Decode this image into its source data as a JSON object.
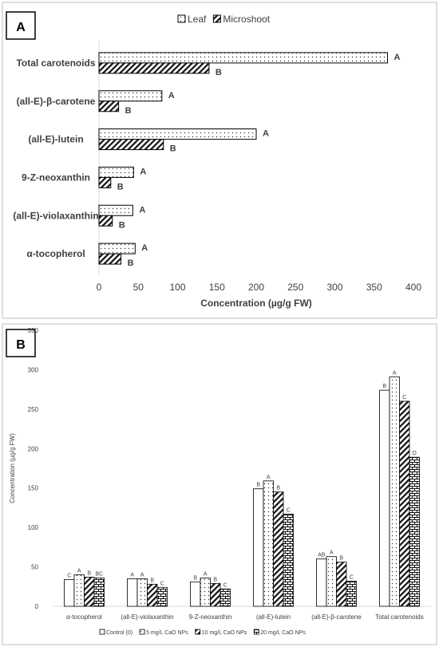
{
  "chart_data": [
    {
      "panel": "A",
      "type": "bar",
      "orientation": "horizontal",
      "categories": [
        "Total carotenoids",
        "(all-E)-β-carotene",
        "(all-E)-lutein",
        "9-Z-neoxanthin",
        "(all-E)-violaxanthin",
        "α-tocopherol"
      ],
      "series": [
        {
          "name": "Leaf",
          "values": [
            367,
            80,
            200,
            44,
            43,
            46
          ],
          "letters": [
            "A",
            "A",
            "A",
            "A",
            "A",
            "A"
          ],
          "pattern": "dots"
        },
        {
          "name": "Microshoot",
          "values": [
            140,
            25,
            82,
            15,
            17,
            28
          ],
          "letters": [
            "B",
            "B",
            "B",
            "B",
            "B",
            "B"
          ],
          "pattern": "hatch"
        }
      ],
      "xlabel": "Concentration (µg/g FW)",
      "xlim": [
        0,
        400
      ],
      "xticks": [
        0,
        50,
        100,
        150,
        200,
        250,
        300,
        350,
        400
      ],
      "legend": "top"
    },
    {
      "panel": "B",
      "type": "bar",
      "orientation": "vertical",
      "categories": [
        "α-tocopherol",
        "(all-E)-violaxanthin",
        "9-Z-neoxanthin",
        "(all-E)-lutein",
        "(all-E)-β-carotene",
        "Total carotenoids"
      ],
      "series": [
        {
          "name": "Control (0)",
          "values": [
            34,
            35,
            31,
            149,
            60,
            274
          ],
          "letters": [
            "C",
            "A",
            "B",
            "B",
            "AB",
            "B"
          ],
          "pattern": "none"
        },
        {
          "name": "5 mg/L CaO NPs",
          "values": [
            40,
            35,
            36,
            159,
            63,
            291
          ],
          "letters": [
            "A",
            "A",
            "A",
            "A",
            "A",
            "A"
          ],
          "pattern": "dots"
        },
        {
          "name": "10 mg/L CaO NPs",
          "values": [
            37,
            28,
            29,
            145,
            56,
            260
          ],
          "letters": [
            "B",
            "B",
            "B",
            "B",
            "B",
            "C"
          ],
          "pattern": "hatch"
        },
        {
          "name": "20 mg/L CaO NPs",
          "values": [
            36,
            24,
            22,
            117,
            32,
            189
          ],
          "letters": [
            "BC",
            "C",
            "C",
            "C",
            "C",
            "D"
          ],
          "pattern": "brick"
        }
      ],
      "ylabel": "Concentration (µg/g FW)",
      "ylim": [
        0,
        350
      ],
      "yticks": [
        0,
        50,
        100,
        150,
        200,
        250,
        300,
        350
      ],
      "legend": "bottom"
    }
  ]
}
